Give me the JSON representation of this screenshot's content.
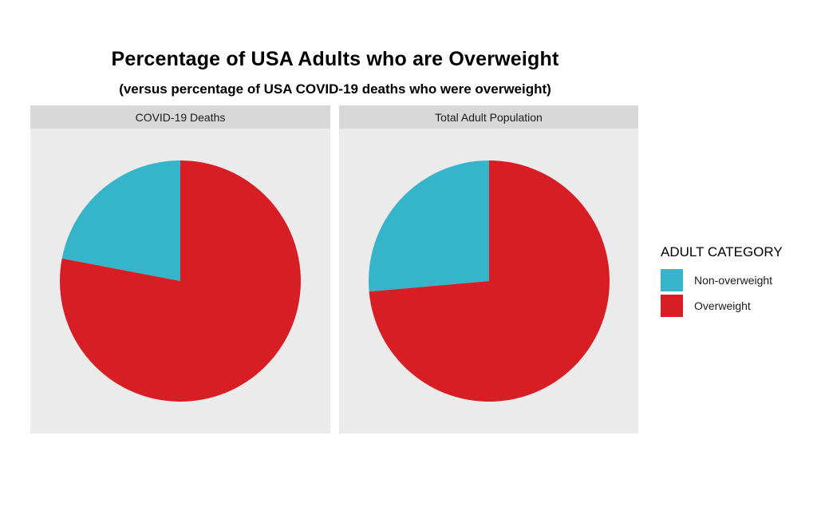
{
  "title": "Percentage of USA Adults who are Overweight",
  "subtitle": "(versus percentage of USA COVID-19 deaths who were overweight)",
  "legend": {
    "title": "ADULT CATEGORY",
    "items": [
      {
        "label": "Non-overweight",
        "color": "#36B4C9"
      },
      {
        "label": "Overweight",
        "color": "#D81E25"
      }
    ]
  },
  "facets": [
    {
      "label": "COVID-19 Deaths"
    },
    {
      "label": "Total Adult Population"
    }
  ],
  "chart_data": [
    {
      "type": "pie",
      "title": "COVID-19 Deaths",
      "labels": [
        "Non-overweight",
        "Overweight"
      ],
      "values": [
        22,
        78
      ],
      "unit": "percent",
      "colors": [
        "#36B4C9",
        "#D81E25"
      ],
      "start_angle": "12-o-clock",
      "direction": "counterclockwise"
    },
    {
      "type": "pie",
      "title": "Total Adult Population",
      "labels": [
        "Non-overweight",
        "Overweight"
      ],
      "values": [
        26.4,
        73.6
      ],
      "unit": "percent",
      "colors": [
        "#36B4C9",
        "#D81E25"
      ],
      "start_angle": "12-o-clock",
      "direction": "counterclockwise"
    }
  ],
  "colors": {
    "panel_background": "#EBEBEB",
    "strip_background": "#D8D8D8",
    "teal": "#36B4C9",
    "red": "#D81E25",
    "text": "#1a1a1a"
  }
}
